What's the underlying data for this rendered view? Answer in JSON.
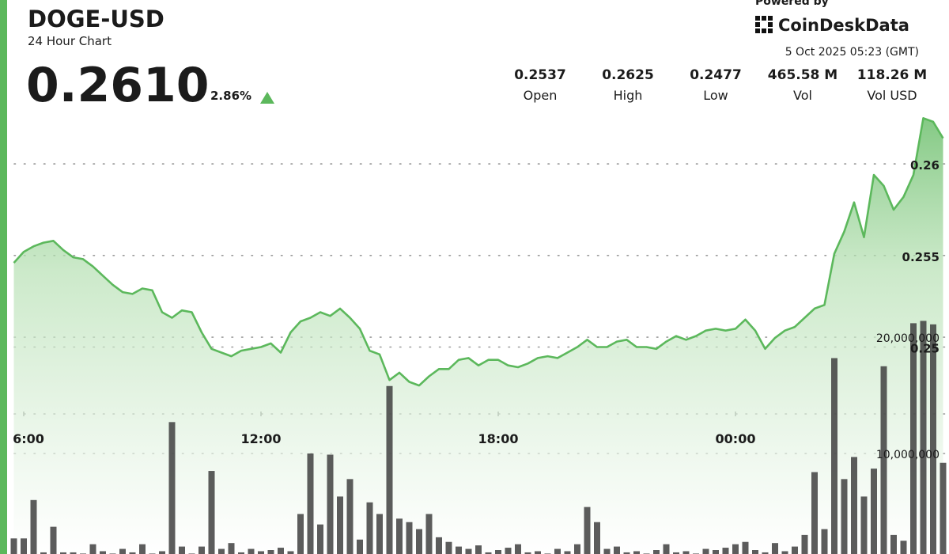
{
  "header": {
    "price": "0.2610",
    "change": "2.86%",
    "powered_by": "Powered by",
    "brand": "CoinDeskData",
    "timestamp": "5 Oct 2025 05:23 (GMT)",
    "stats": [
      {
        "value": "0.2537",
        "label": "Open"
      },
      {
        "value": "0.2625",
        "label": "High"
      },
      {
        "value": "0.2477",
        "label": "Low"
      },
      {
        "value": "465.58 M",
        "label": "Vol"
      },
      {
        "value": "118.26 M",
        "label": "Vol USD"
      }
    ]
  },
  "chart_data": {
    "type": "line",
    "title": "DOGE-USD",
    "subtitle": "24 Hour Chart",
    "x": [
      5.75,
      6,
      6.25,
      6.5,
      6.75,
      7,
      7.25,
      7.5,
      7.75,
      8,
      8.25,
      8.5,
      8.75,
      9,
      9.25,
      9.5,
      9.75,
      10,
      10.25,
      10.5,
      10.75,
      11,
      11.25,
      11.5,
      11.75,
      12,
      12.25,
      12.5,
      12.75,
      13,
      13.25,
      13.5,
      13.75,
      14,
      14.25,
      14.5,
      14.75,
      15,
      15.25,
      15.5,
      15.75,
      16,
      16.25,
      16.5,
      16.75,
      17,
      17.25,
      17.5,
      17.75,
      18,
      18.25,
      18.5,
      18.75,
      19,
      19.25,
      19.5,
      19.75,
      20,
      20.25,
      20.5,
      20.75,
      21,
      21.25,
      21.5,
      21.75,
      22,
      22.25,
      22.5,
      22.75,
      23,
      23.25,
      23.5,
      23.75,
      24,
      24.25,
      24.5,
      24.75,
      25,
      25.25,
      25.5,
      25.75,
      26,
      26.25,
      26.5,
      26.75,
      27,
      27.25,
      27.5,
      27.75,
      28,
      28.25,
      28.5,
      28.75,
      29,
      29.25
    ],
    "series": [
      {
        "type": "area",
        "color": "#5cb85c",
        "values": [
          0.2546,
          0.2552,
          0.2555,
          0.2557,
          0.2558,
          0.2553,
          0.2549,
          0.2548,
          0.2544,
          0.2539,
          0.2534,
          0.253,
          0.2529,
          0.2532,
          0.2531,
          0.2519,
          0.2516,
          0.252,
          0.2519,
          0.2508,
          0.2499,
          0.2497,
          0.2495,
          0.2498,
          0.2499,
          0.25,
          0.2502,
          0.2497,
          0.2508,
          0.2514,
          0.2516,
          0.2519,
          0.2517,
          0.2521,
          0.2516,
          0.251,
          0.2498,
          0.2496,
          0.2482,
          0.2486,
          0.2481,
          0.2479,
          0.2484,
          0.2488,
          0.2488,
          0.2493,
          0.2494,
          0.249,
          0.2493,
          0.2493,
          0.249,
          0.2489,
          0.2491,
          0.2494,
          0.2495,
          0.2494,
          0.2497,
          0.25,
          0.2504,
          0.25,
          0.25,
          0.2503,
          0.2504,
          0.25,
          0.25,
          0.2499,
          0.2503,
          0.2506,
          0.2504,
          0.2506,
          0.2509,
          0.251,
          0.2509,
          0.251,
          0.2515,
          0.2509,
          0.2499,
          0.2505,
          0.2509,
          0.2511,
          0.2516,
          0.2521,
          0.2523,
          0.2551,
          0.2563,
          0.2579,
          0.256,
          0.2594,
          0.2588,
          0.2575,
          0.2582,
          0.2594,
          0.2625,
          0.2623,
          0.2614
        ]
      },
      {
        "type": "bar",
        "axis": "y2",
        "color": "#3f3f3f",
        "values": [
          2700000,
          2700000,
          6000000,
          1500000,
          3700000,
          1500000,
          1500000,
          1400000,
          2200000,
          1600000,
          1400000,
          1800000,
          1500000,
          2200000,
          1400000,
          1600000,
          12700000,
          2000000,
          1400000,
          2000000,
          8500000,
          1800000,
          2300000,
          1500000,
          1800000,
          1600000,
          1700000,
          1900000,
          1600000,
          4800000,
          10000000,
          3900000,
          9900000,
          6300000,
          7800000,
          2600000,
          5800000,
          4800000,
          15800000,
          4400000,
          4100000,
          3500000,
          4800000,
          2800000,
          2400000,
          2000000,
          1800000,
          2100000,
          1500000,
          1700000,
          1900000,
          2200000,
          1500000,
          1600000,
          1400000,
          1800000,
          1600000,
          2200000,
          5400000,
          4100000,
          1800000,
          2000000,
          1500000,
          1600000,
          1400000,
          1700000,
          2200000,
          1500000,
          1600000,
          1400000,
          1800000,
          1700000,
          1900000,
          2200000,
          2400000,
          1700000,
          1500000,
          2300000,
          1600000,
          2000000,
          3000000,
          8400000,
          3500000,
          18200000,
          7800000,
          9700000,
          6300000,
          8700000,
          17500000,
          3000000,
          2500000,
          21200000,
          21400000,
          21100000,
          9200000
        ]
      }
    ],
    "xlim": [
      5.6,
      29.3
    ],
    "xticks": [
      {
        "value": 6,
        "label": "6:00"
      },
      {
        "value": 12,
        "label": "12:00"
      },
      {
        "value": 18,
        "label": "18:00"
      },
      {
        "value": 24,
        "label": "00:00"
      }
    ],
    "ylim": [
      0.2387,
      0.2629
    ],
    "yticks": [
      0.25,
      0.255,
      0.26
    ],
    "y2lim": [
      1360000,
      39460000
    ],
    "y2ticks": [
      {
        "value": 10000000,
        "label": "10,000,000"
      },
      {
        "value": 20000000,
        "label": "20,000,000"
      }
    ],
    "grid": true
  }
}
